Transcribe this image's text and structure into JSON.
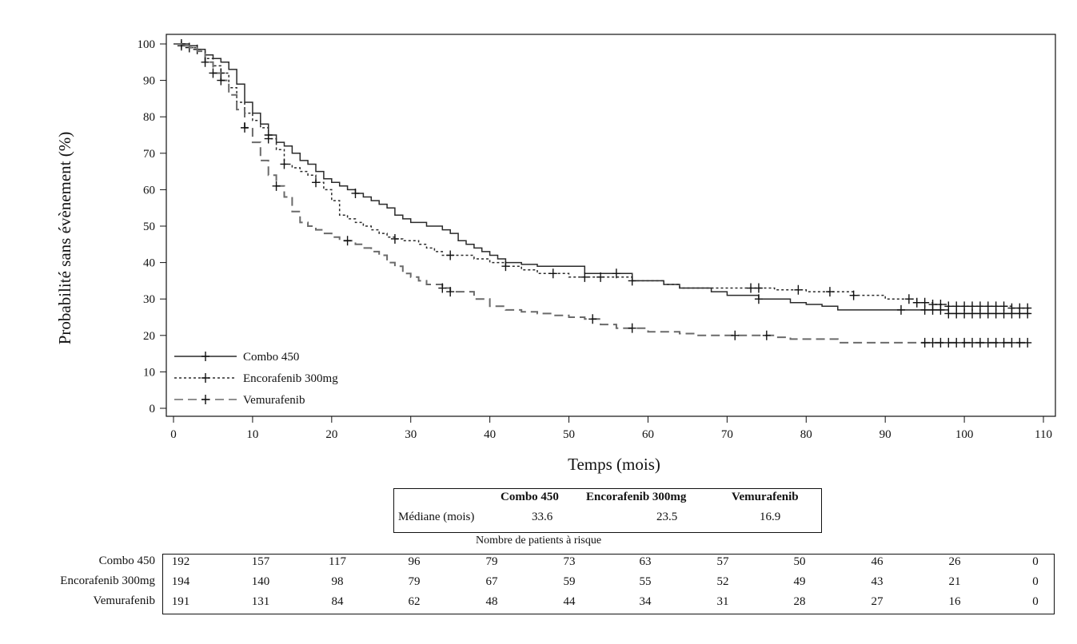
{
  "chart_data": {
    "type": "line",
    "xlabel": "Temps (mois)",
    "ylabel": "Probabilité sans évènement (%)",
    "xlim": [
      0,
      110
    ],
    "ylim": [
      0,
      100
    ],
    "xticks": [
      0,
      10,
      20,
      30,
      40,
      50,
      60,
      70,
      80,
      90,
      100,
      110
    ],
    "yticks": [
      0,
      10,
      20,
      30,
      40,
      50,
      60,
      70,
      80,
      90,
      100
    ],
    "grid": false,
    "legend_position": "bottom-left",
    "series": [
      {
        "name": "Combo 450",
        "line_style": "solid",
        "color": "#2a2a2a",
        "x": [
          0,
          1,
          2,
          3,
          4,
          5,
          6,
          7,
          8,
          9,
          10,
          11,
          12,
          13,
          14,
          15,
          16,
          17,
          18,
          19,
          20,
          21,
          22,
          23,
          24,
          25,
          26,
          27,
          28,
          29,
          30,
          31,
          32,
          33,
          34,
          35,
          36,
          37,
          38,
          39,
          40,
          41,
          42,
          43,
          44,
          45,
          46,
          47,
          48,
          49,
          50,
          52,
          54,
          56,
          58,
          60,
          62,
          64,
          66,
          68,
          70,
          72,
          74,
          76,
          78,
          80,
          82,
          84,
          86,
          88,
          90,
          92,
          94,
          96,
          98,
          100,
          102,
          104,
          106,
          108.3
        ],
        "y": [
          100,
          100,
          99.5,
          98.5,
          97,
          96,
          95,
          93,
          89,
          84,
          81,
          78,
          75,
          73,
          72,
          70,
          68,
          67,
          65,
          63,
          62,
          61,
          60,
          59,
          58,
          57,
          56,
          55,
          53,
          52,
          51,
          51,
          50,
          50,
          49,
          48,
          46,
          45,
          44,
          43,
          42,
          41,
          40,
          40,
          39.5,
          39.5,
          39,
          39,
          39,
          39,
          39,
          37,
          37,
          37,
          35,
          35,
          34,
          33,
          33,
          32,
          31,
          31,
          30,
          30,
          29,
          28.5,
          28,
          27,
          27,
          27,
          27,
          27,
          27,
          27,
          26,
          26,
          26,
          26,
          26,
          26
        ],
        "censor_x": [
          1,
          3,
          12,
          23,
          56,
          74,
          92,
          95,
          96,
          97,
          98,
          99,
          100,
          101,
          102,
          103,
          104,
          105,
          106,
          107,
          108
        ],
        "median_months": "33.6",
        "at_risk": [
          "192",
          "157",
          "117",
          "96",
          "79",
          "73",
          "63",
          "57",
          "50",
          "46",
          "26",
          "0"
        ]
      },
      {
        "name": "Encorafenib 300mg",
        "line_style": "dotted",
        "color": "#2a2a2a",
        "x": [
          0,
          1,
          2,
          3,
          4,
          5,
          6,
          7,
          8,
          9,
          10,
          11,
          12,
          13,
          14,
          15,
          16,
          17,
          18,
          19,
          20,
          21,
          22,
          23,
          24,
          25,
          26,
          27,
          28,
          29,
          30,
          31,
          32,
          33,
          34,
          35,
          36,
          38,
          40,
          42,
          44,
          46,
          48,
          50,
          52,
          54,
          56,
          58,
          60,
          62,
          64,
          66,
          68,
          70,
          72,
          74,
          76,
          78,
          80,
          82,
          84,
          86,
          88,
          90,
          92,
          94,
          96,
          98,
          100,
          102,
          104,
          106,
          108.3
        ],
        "y": [
          100,
          99.5,
          99,
          98,
          96,
          94,
          92,
          88,
          84,
          81,
          79,
          77,
          74,
          71,
          67,
          66,
          65,
          64,
          62,
          60,
          57,
          53,
          52,
          51,
          50,
          49,
          48,
          47,
          46.5,
          46,
          46,
          45,
          44,
          43,
          42,
          42,
          42,
          41,
          40,
          39,
          38,
          37,
          37,
          36,
          36,
          36,
          36,
          35,
          35,
          34,
          33,
          33,
          33,
          33,
          33,
          33,
          32.5,
          32.5,
          32,
          32,
          32,
          31,
          31,
          30,
          30,
          29,
          28.5,
          28,
          28,
          28,
          28,
          27.5,
          27.5
        ],
        "censor_x": [
          1,
          2,
          6,
          12,
          14,
          18,
          28,
          35,
          42,
          48,
          52,
          54,
          58,
          73,
          74,
          79,
          83,
          86,
          93,
          94,
          95,
          96,
          97,
          98,
          99,
          100,
          101,
          102,
          103,
          104,
          105,
          106,
          107,
          108
        ],
        "median_months": "23.5",
        "at_risk": [
          "194",
          "140",
          "98",
          "79",
          "67",
          "59",
          "55",
          "52",
          "49",
          "43",
          "21",
          "0"
        ]
      },
      {
        "name": "Vemurafenib",
        "line_style": "dashed",
        "color": "#6a6a6a",
        "x": [
          0,
          1,
          2,
          3,
          4,
          5,
          6,
          7,
          8,
          9,
          10,
          11,
          12,
          13,
          14,
          15,
          16,
          17,
          18,
          19,
          20,
          21,
          22,
          23,
          24,
          25,
          26,
          27,
          28,
          29,
          30,
          31,
          32,
          33,
          34,
          35,
          36,
          38,
          40,
          42,
          44,
          46,
          48,
          50,
          52,
          54,
          56,
          58,
          60,
          62,
          64,
          66,
          68,
          70,
          72,
          74,
          76,
          78,
          80,
          82,
          84,
          86,
          88,
          90,
          92,
          94,
          96,
          98,
          100,
          102,
          104,
          106,
          108.3
        ],
        "y": [
          100,
          99.5,
          99,
          98,
          95,
          92,
          90,
          86,
          82,
          77,
          73,
          68,
          64,
          61,
          58,
          54,
          51,
          50,
          49,
          48,
          47,
          46,
          46,
          45,
          44,
          43,
          42,
          40,
          39,
          37,
          36,
          35,
          34,
          34,
          33,
          32,
          32,
          30,
          28,
          27,
          26.5,
          26,
          25.5,
          25,
          24.5,
          23,
          22,
          22,
          21,
          21,
          20.5,
          20,
          20,
          20,
          20,
          20,
          19.5,
          19,
          19,
          19,
          18,
          18,
          18,
          18,
          18,
          18,
          18,
          18,
          18,
          18,
          18,
          18,
          18
        ],
        "censor_x": [
          4,
          5,
          6,
          9,
          13,
          22,
          34,
          35,
          53,
          58,
          71,
          75,
          95,
          96,
          97,
          98,
          99,
          100,
          101,
          102,
          103,
          104,
          105,
          106,
          107,
          108
        ],
        "median_months": "16.9",
        "at_risk": [
          "191",
          "131",
          "84",
          "62",
          "48",
          "44",
          "34",
          "31",
          "28",
          "27",
          "16",
          "0"
        ]
      }
    ]
  },
  "median_table": {
    "row_label": "Médiane (mois)"
  },
  "risk_table": {
    "title": "Nombre de patients à risque"
  }
}
